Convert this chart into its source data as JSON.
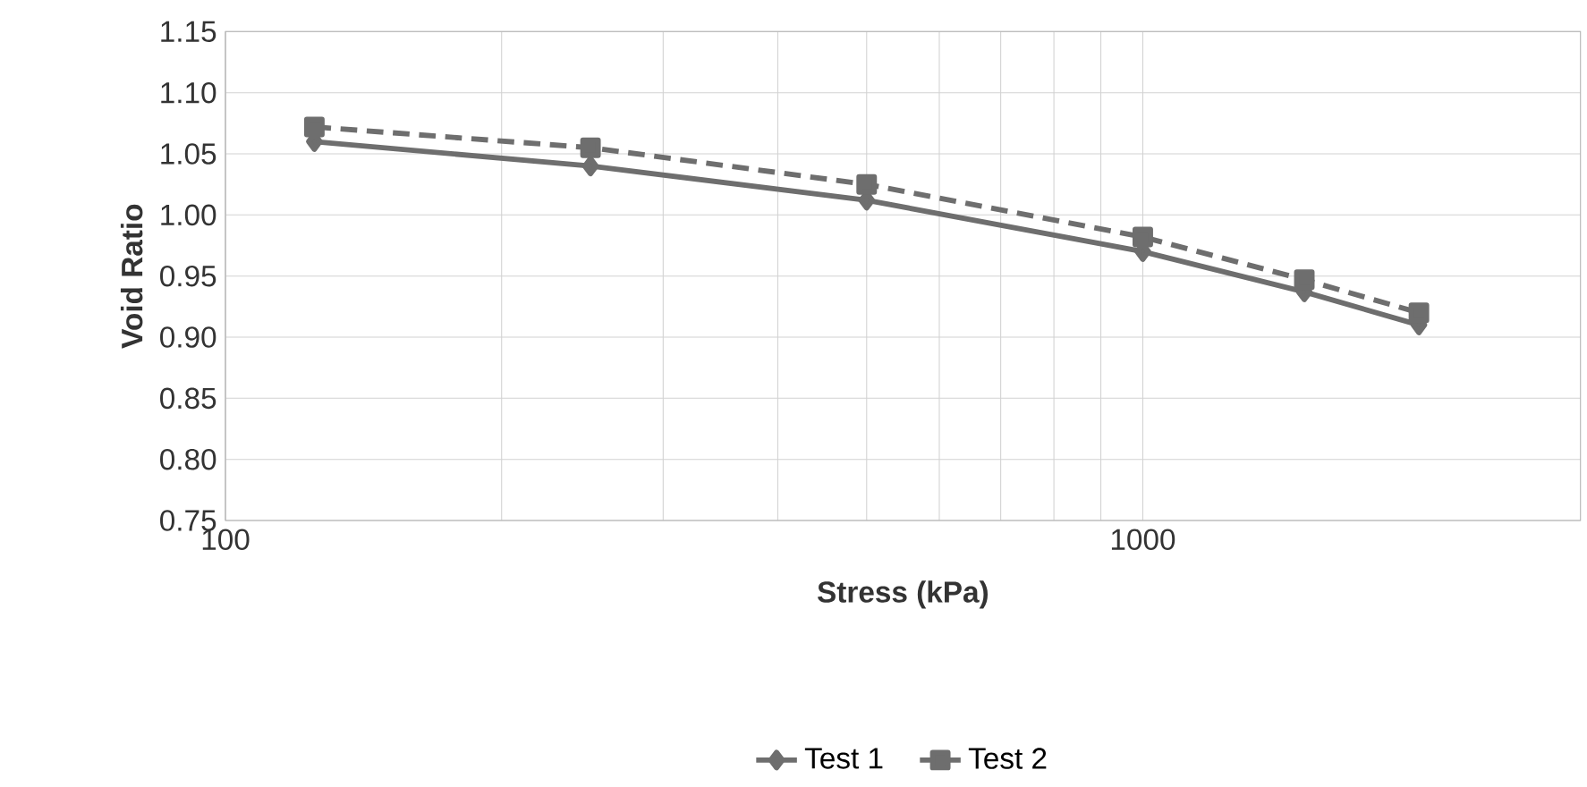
{
  "chart_data": {
    "type": "line",
    "xlabel": "Stress (kPa)",
    "ylabel": "Void Ratio",
    "x": [
      125,
      250,
      500,
      1000,
      1500,
      2000
    ],
    "series": [
      {
        "name": "Test 1",
        "color": "#6e6e6e",
        "marker": "diamond",
        "line_style": "solid",
        "values": [
          1.06,
          1.04,
          1.012,
          0.97,
          0.937,
          0.91
        ]
      },
      {
        "name": "Test 2",
        "color": "#6e6e6e",
        "marker": "square",
        "line_style": "dashed",
        "values": [
          1.072,
          1.055,
          1.025,
          0.982,
          0.947,
          0.92
        ]
      }
    ],
    "log": "x",
    "xlim": [
      100,
      3000
    ],
    "xticks": [
      100,
      1000
    ],
    "ylim": [
      0.75,
      1.15
    ],
    "yticks": [
      0.75,
      {
        "value": 0.8,
        "label": "0.80"
      },
      0.85,
      {
        "value": 0.9,
        "label": "0.90"
      },
      0.95,
      {
        "value": 1.0,
        "label": "1.00"
      },
      1.05,
      {
        "value": 1.1,
        "label": "1.10"
      },
      1.15
    ],
    "grid": true,
    "legend": "bottom"
  }
}
